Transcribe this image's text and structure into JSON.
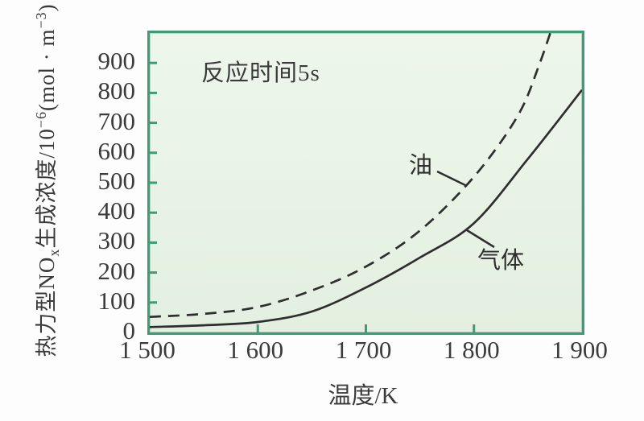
{
  "page": {
    "background": "#ffffff"
  },
  "chart_data": {
    "type": "line",
    "title": "",
    "annotation": "反应时间5s",
    "xlabel": "温度/K",
    "ylabel": "热力型NOx生成浓度/10−6(mol·m−3)",
    "ylabel_parts": {
      "base1": "热力型NO",
      "sub1": "x",
      "base2": "生成浓度/10",
      "sup1": "−6",
      "base3": "(mol · m",
      "sup2": "−3",
      "base4": ")"
    },
    "xlim": [
      1500,
      1900
    ],
    "ylim": [
      0,
      1000
    ],
    "grid": false,
    "legend_position": "labels-on-curves",
    "xticks": [
      {
        "v": 1500,
        "label": "1 500"
      },
      {
        "v": 1600,
        "label": "1 600"
      },
      {
        "v": 1700,
        "label": "1 700"
      },
      {
        "v": 1800,
        "label": "1 800"
      },
      {
        "v": 1900,
        "label": "1 900"
      }
    ],
    "yticks": [
      {
        "v": 0,
        "label": "0"
      },
      {
        "v": 100,
        "label": "100"
      },
      {
        "v": 200,
        "label": "200"
      },
      {
        "v": 300,
        "label": "300"
      },
      {
        "v": 400,
        "label": "400"
      },
      {
        "v": 500,
        "label": "500"
      },
      {
        "v": 600,
        "label": "600"
      },
      {
        "v": 700,
        "label": "700"
      },
      {
        "v": 800,
        "label": "800"
      },
      {
        "v": 900,
        "label": "900"
      }
    ],
    "series": [
      {
        "name": "油",
        "line_style": "dashed",
        "points": [
          [
            1500,
            52
          ],
          [
            1550,
            62
          ],
          [
            1600,
            85
          ],
          [
            1650,
            140
          ],
          [
            1700,
            220
          ],
          [
            1750,
            340
          ],
          [
            1800,
            520
          ],
          [
            1840,
            720
          ],
          [
            1860,
            890
          ],
          [
            1878,
            1080
          ]
        ]
      },
      {
        "name": "气体",
        "line_style": "solid",
        "points": [
          [
            1500,
            18
          ],
          [
            1550,
            24
          ],
          [
            1600,
            35
          ],
          [
            1650,
            70
          ],
          [
            1700,
            150
          ],
          [
            1750,
            250
          ],
          [
            1800,
            365
          ],
          [
            1850,
            580
          ],
          [
            1900,
            810
          ]
        ]
      }
    ],
    "colors": {
      "curve": "#2e2e2e",
      "frame": "#3f9c79",
      "plot_bg": "#e8f3e5"
    }
  }
}
